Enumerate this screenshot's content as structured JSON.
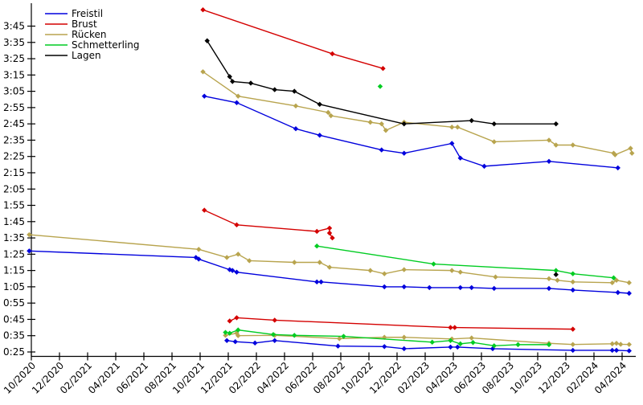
{
  "chart_data": {
    "type": "line",
    "title": "",
    "description": "Swimming best times per stroke over time; each stroke has up to three disconnected lines (long, middle, short distance). Y axis is time mm:ss (faster = lower), x axis is month/year.",
    "x_axis": {
      "tick_labels": [
        "10/2020",
        "12/2020",
        "02/2021",
        "04/2021",
        "06/2021",
        "08/2021",
        "10/2021",
        "12/2021",
        "02/2022",
        "04/2022",
        "06/2022",
        "08/2022",
        "10/2022",
        "12/2022",
        "02/2023",
        "04/2023",
        "06/2023",
        "08/2023",
        "10/2023",
        "12/2023",
        "02/2024",
        "04/2024"
      ],
      "months_per_tick": 2,
      "rotation_deg": -45
    },
    "y_axis": {
      "tick_labels": [
        "0:25",
        "0:35",
        "0:45",
        "0:55",
        "1:05",
        "1:15",
        "1:25",
        "1:35",
        "1:45",
        "1:55",
        "2:05",
        "2:15",
        "2:25",
        "2:35",
        "2:45",
        "2:55",
        "3:05",
        "3:15",
        "3:25",
        "3:35",
        "3:45"
      ],
      "tick_seconds": [
        25,
        35,
        45,
        55,
        65,
        75,
        85,
        95,
        105,
        115,
        125,
        135,
        145,
        155,
        165,
        175,
        185,
        195,
        205,
        215,
        225
      ],
      "format": "m:ss",
      "grid": false
    },
    "legend": {
      "position": "top-left-inside",
      "entries": [
        "Freistil",
        "Brust",
        "Rücken",
        "Schmetterling",
        "Lagen"
      ]
    },
    "point_format": "[months_after_10_2020, time_seconds]",
    "series": [
      {
        "name": "Freistil",
        "color": "#0000dd",
        "lines": [
          [
            [
              12.3,
              182
            ],
            [
              14.6,
              178
            ],
            [
              18.8,
              162
            ],
            [
              20.5,
              158
            ],
            [
              24.9,
              149
            ],
            [
              26.5,
              147
            ],
            [
              29.9,
              153
            ],
            [
              30.5,
              144
            ],
            [
              32.2,
              139
            ],
            [
              36.8,
              142
            ],
            [
              41.7,
              138
            ]
          ],
          [
            [
              -0.15,
              87
            ],
            [
              11.7,
              83
            ],
            [
              11.9,
              82
            ],
            [
              14.1,
              75.5
            ],
            [
              14.3,
              75
            ],
            [
              14.6,
              74
            ],
            [
              20.3,
              68
            ],
            [
              20.6,
              68
            ],
            [
              25.1,
              65
            ],
            [
              26.5,
              65
            ],
            [
              28.3,
              64.5
            ],
            [
              30.5,
              64.5
            ],
            [
              31.3,
              64.5
            ],
            [
              32.9,
              64
            ],
            [
              36.8,
              64
            ],
            [
              38.5,
              63
            ],
            [
              41.7,
              61.5
            ],
            [
              42.5,
              61
            ]
          ],
          [
            [
              13.9,
              32
            ],
            [
              14.5,
              31.3
            ],
            [
              15.9,
              30.5
            ],
            [
              17.3,
              32
            ],
            [
              21.8,
              28.6
            ],
            [
              25.1,
              28.3
            ],
            [
              26.5,
              27
            ],
            [
              29.8,
              28
            ],
            [
              30.3,
              28
            ],
            [
              32.8,
              27
            ],
            [
              38.5,
              26
            ],
            [
              41.3,
              26
            ],
            [
              41.6,
              26
            ],
            [
              42.5,
              25.7
            ]
          ]
        ]
      },
      {
        "name": "Brust",
        "color": "#d40000",
        "lines": [
          [
            [
              12.2,
              235
            ],
            [
              21.4,
              208
            ],
            [
              25.0,
              199
            ]
          ],
          [
            [
              12.3,
              112
            ],
            [
              14.6,
              103
            ],
            [
              20.3,
              99
            ],
            [
              21.2,
              101
            ],
            [
              21.2,
              98
            ],
            [
              21.4,
              95
            ]
          ],
          [
            [
              14.1,
              44
            ],
            [
              14.6,
              46
            ],
            [
              17.3,
              44.5
            ],
            [
              29.8,
              40
            ],
            [
              30.1,
              40
            ],
            [
              38.5,
              39
            ]
          ]
        ]
      },
      {
        "name": "Rücken",
        "color": "#b8a44e",
        "lines": [
          [
            [
              12.2,
              197
            ],
            [
              14.7,
              182
            ],
            [
              18.8,
              176
            ],
            [
              21.1,
              172
            ],
            [
              21.3,
              170
            ],
            [
              24.1,
              166
            ],
            [
              24.9,
              165
            ],
            [
              25.2,
              161
            ],
            [
              26.5,
              166
            ],
            [
              29.9,
              163
            ],
            [
              30.3,
              163
            ],
            [
              32.9,
              154
            ],
            [
              36.8,
              155
            ],
            [
              37.3,
              152
            ],
            [
              38.5,
              152
            ],
            [
              41.4,
              147
            ],
            [
              41.5,
              146
            ],
            [
              42.6,
              150
            ],
            [
              42.7,
              147
            ]
          ],
          [
            [
              -0.15,
              97
            ],
            [
              11.9,
              88
            ],
            [
              13.9,
              83
            ],
            [
              14.7,
              85
            ],
            [
              15.5,
              81
            ],
            [
              18.7,
              80
            ],
            [
              20.5,
              80
            ],
            [
              21.2,
              77
            ],
            [
              24.1,
              75
            ],
            [
              25.1,
              73
            ],
            [
              26.5,
              75.5
            ],
            [
              29.9,
              75
            ],
            [
              30.5,
              74
            ],
            [
              33.0,
              71
            ],
            [
              36.8,
              70
            ],
            [
              37.4,
              69
            ],
            [
              38.5,
              68
            ],
            [
              41.3,
              67.5
            ],
            [
              41.6,
              69
            ],
            [
              42.5,
              67.5
            ]
          ],
          [
            [
              13.8,
              35.2
            ],
            [
              14.6,
              36.5
            ],
            [
              14.7,
              35
            ],
            [
              17.3,
              35.2
            ],
            [
              21.9,
              33.2
            ],
            [
              25.1,
              34
            ],
            [
              26.5,
              34
            ],
            [
              29.9,
              33
            ],
            [
              31.3,
              33.6
            ],
            [
              36.8,
              30.3
            ],
            [
              38.5,
              29.6
            ],
            [
              41.3,
              30
            ],
            [
              41.6,
              30.3
            ],
            [
              41.9,
              29.7
            ],
            [
              42.5,
              29.6
            ]
          ]
        ]
      },
      {
        "name": "Schmetterling",
        "color": "#00cc22",
        "lines": [
          [
            [
              24.8,
              188
            ]
          ],
          [
            [
              20.3,
              90
            ],
            [
              28.6,
              79
            ],
            [
              37.3,
              75
            ],
            [
              38.5,
              73
            ],
            [
              41.4,
              70.5
            ]
          ],
          [
            [
              13.8,
              37
            ],
            [
              14.1,
              36.5
            ],
            [
              14.7,
              38.5
            ],
            [
              17.2,
              35.7
            ],
            [
              18.7,
              35.2
            ],
            [
              22.2,
              34.6
            ],
            [
              28.5,
              31
            ],
            [
              29.8,
              32
            ],
            [
              30.5,
              30
            ],
            [
              31.4,
              30.8
            ],
            [
              32.9,
              28.8
            ],
            [
              34.6,
              29.5
            ],
            [
              36.8,
              29.5
            ]
          ]
        ]
      },
      {
        "name": "Lagen",
        "color": "#000000",
        "lines": [
          [
            [
              12.5,
              216
            ],
            [
              14.1,
              194
            ],
            [
              14.3,
              191
            ],
            [
              15.6,
              190
            ],
            [
              17.3,
              186
            ],
            [
              18.7,
              185
            ],
            [
              20.5,
              177
            ],
            [
              26.5,
              165
            ],
            [
              31.3,
              167
            ],
            [
              32.9,
              165
            ],
            [
              37.3,
              165
            ]
          ],
          [
            [
              37.3,
              72.5
            ]
          ]
        ]
      }
    ]
  }
}
